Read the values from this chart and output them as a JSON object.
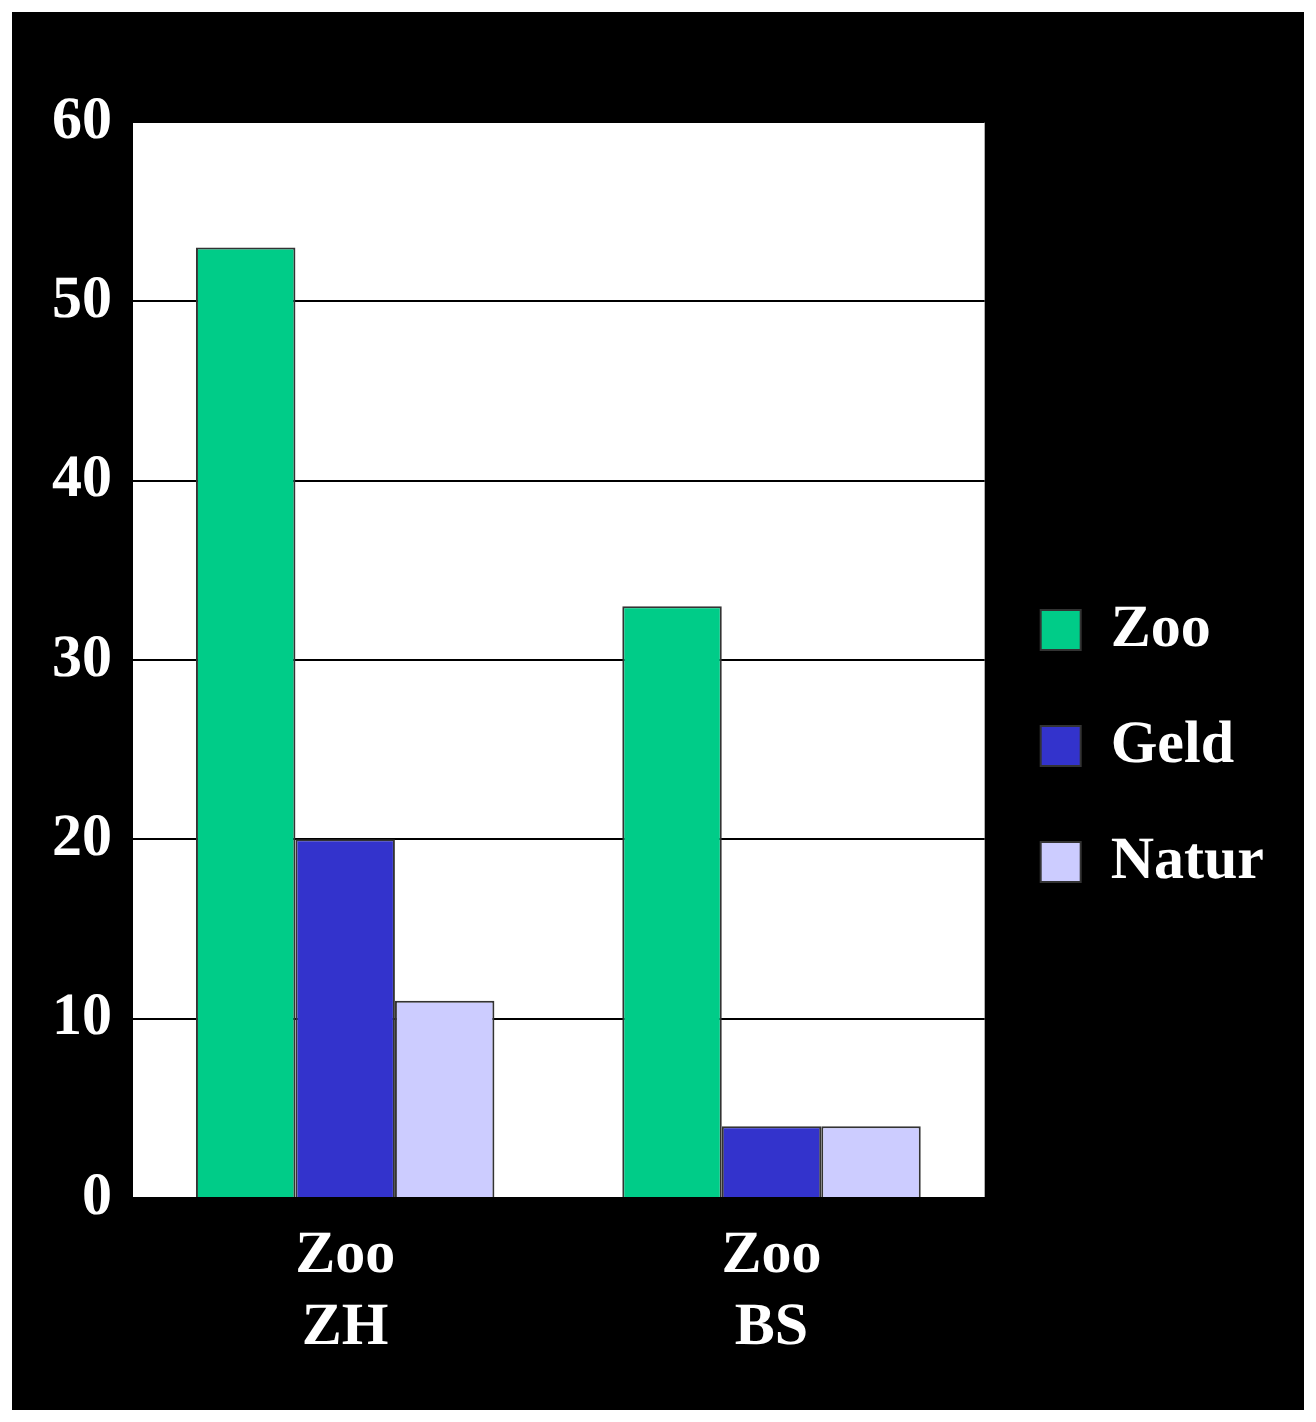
{
  "chart_data": {
    "type": "bar",
    "categories": [
      "Zoo ZH",
      "Zoo BS"
    ],
    "series": [
      {
        "name": "Zoo",
        "color": "#00cc88",
        "values": [
          53,
          33
        ]
      },
      {
        "name": "Geld",
        "color": "#3333cc",
        "values": [
          20,
          4
        ]
      },
      {
        "name": "Natur",
        "color": "#ccccff",
        "values": [
          11,
          4
        ]
      }
    ],
    "ylim": [
      0,
      60
    ],
    "yticks": [
      0,
      10,
      20,
      30,
      40,
      50,
      60
    ],
    "grid": "y",
    "legend": "right"
  }
}
